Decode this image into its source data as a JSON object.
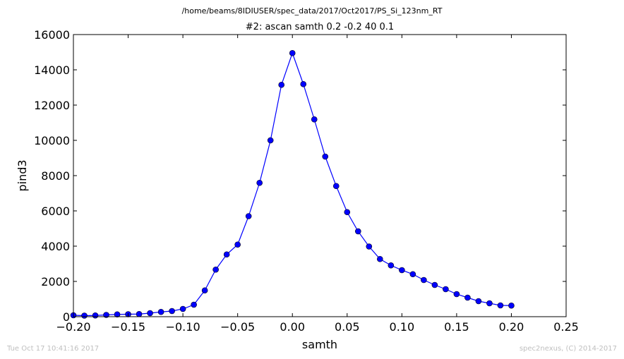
{
  "chart_data": {
    "type": "line",
    "suptitle": "/home/beams/8IDIUSER/spec_data/2017/Oct2017/PS_Si_123nm_RT",
    "title": "#2: ascan  samth 0.2 -0.2  40 0.1",
    "xlabel": "samth",
    "ylabel": "pind3",
    "xlim": [
      -0.2,
      0.25
    ],
    "ylim": [
      0,
      16000
    ],
    "xticks": [
      -0.2,
      -0.15,
      -0.1,
      -0.05,
      0.0,
      0.05,
      0.1,
      0.15,
      0.2,
      0.25
    ],
    "xtick_labels": [
      "−0.20",
      "−0.15",
      "−0.10",
      "−0.05",
      "0.00",
      "0.05",
      "0.10",
      "0.15",
      "0.20",
      "0.25"
    ],
    "yticks": [
      0,
      2000,
      4000,
      6000,
      8000,
      10000,
      12000,
      14000,
      16000
    ],
    "ytick_labels": [
      "0",
      "2000",
      "4000",
      "6000",
      "8000",
      "10000",
      "12000",
      "14000",
      "16000"
    ],
    "grid": false,
    "series": [
      {
        "color": "#0000ff",
        "marker": "circle",
        "x": [
          -0.2,
          -0.19,
          -0.18,
          -0.17,
          -0.16,
          -0.15,
          -0.14,
          -0.13,
          -0.12,
          -0.11,
          -0.1,
          -0.09,
          -0.08,
          -0.07,
          -0.06,
          -0.05,
          -0.04,
          -0.03,
          -0.02,
          -0.01,
          0.0,
          0.01,
          0.02,
          0.03,
          0.04,
          0.05,
          0.06,
          0.07,
          0.08,
          0.09,
          0.1,
          0.11,
          0.12,
          0.13,
          0.14,
          0.15,
          0.16,
          0.17,
          0.18,
          0.19,
          0.2
        ],
        "y": [
          80,
          60,
          70,
          100,
          130,
          140,
          150,
          200,
          270,
          320,
          440,
          680,
          1490,
          2670,
          3530,
          4090,
          5700,
          7590,
          10000,
          13150,
          14950,
          13190,
          11190,
          9080,
          7410,
          5930,
          4840,
          3980,
          3270,
          2910,
          2640,
          2410,
          2080,
          1800,
          1560,
          1280,
          1080,
          880,
          760,
          640,
          630
        ]
      }
    ]
  },
  "footer": {
    "timestamp": "Tue Oct 17 10:41:16 2017",
    "credit": "spec2nexus, (C) 2014-2017"
  }
}
